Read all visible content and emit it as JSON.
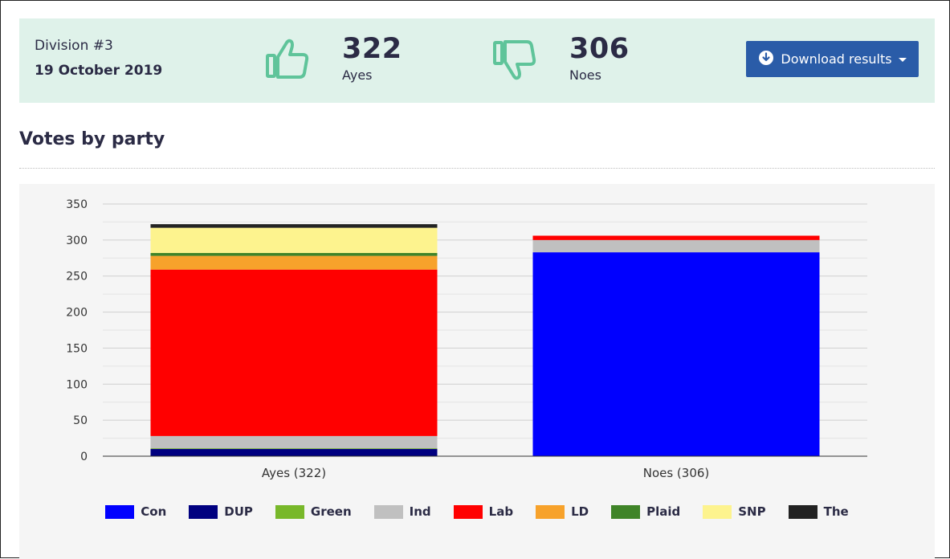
{
  "division": {
    "title": "Division #3",
    "date": "19 October 2019"
  },
  "ayes": {
    "count": "322",
    "label": "Ayes",
    "icon": "thumbs-up-icon"
  },
  "noes": {
    "count": "306",
    "label": "Noes",
    "icon": "thumbs-down-icon"
  },
  "colors": {
    "summary_bg": "#dff2ea",
    "icon": "#5fc49a",
    "button": "#2a5ca8"
  },
  "download": {
    "label": "Download results",
    "icon": "download-circle-icon"
  },
  "section_title": "Votes by party",
  "chart_data": {
    "type": "bar",
    "stacked": true,
    "categories": [
      "Ayes (322)",
      "Noes (306)"
    ],
    "series": [
      {
        "name": "Con",
        "color": "#0000ff",
        "values": [
          0,
          283
        ]
      },
      {
        "name": "DUP",
        "color": "#000080",
        "values": [
          10,
          0
        ]
      },
      {
        "name": "Green",
        "color": "#78b82a",
        "values": [
          1,
          0
        ]
      },
      {
        "name": "Ind",
        "color": "#c0c0c0",
        "values": [
          17,
          17
        ]
      },
      {
        "name": "Lab",
        "color": "#ff0000",
        "values": [
          231,
          6
        ]
      },
      {
        "name": "LD",
        "color": "#f7a22b",
        "values": [
          19,
          0
        ]
      },
      {
        "name": "Plaid",
        "color": "#3f8428",
        "values": [
          4,
          0
        ]
      },
      {
        "name": "SNP",
        "color": "#fdf38e",
        "values": [
          35,
          0
        ]
      },
      {
        "name": "The",
        "color": "#222222",
        "values": [
          5,
          0
        ]
      }
    ],
    "ylim": [
      0,
      350
    ],
    "yticks": [
      0,
      50,
      100,
      150,
      200,
      250,
      300,
      350
    ],
    "grid": true,
    "legend_position": "bottom"
  }
}
